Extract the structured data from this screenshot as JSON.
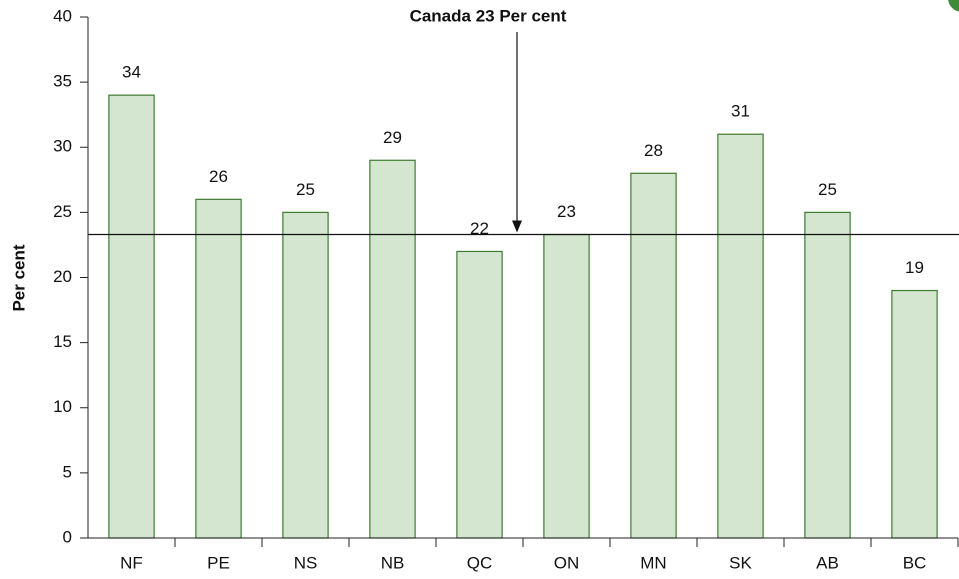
{
  "chart_data": {
    "type": "bar",
    "categories": [
      "NF",
      "PE",
      "NS",
      "NB",
      "QC",
      "ON",
      "MN",
      "SK",
      "AB",
      "BC"
    ],
    "values": [
      34,
      26,
      25,
      29,
      22,
      23.3,
      28,
      31,
      25,
      19
    ],
    "value_labels": [
      "34",
      "26",
      "25",
      "29",
      "22",
      "23",
      "28",
      "31",
      "25",
      "19"
    ],
    "color": "#d5e6d0",
    "edge_color": "#3d7a30",
    "ylabel": "Per cent",
    "ylim": [
      0,
      40
    ],
    "yticks": [
      0,
      5,
      10,
      15,
      20,
      25,
      30,
      35,
      40
    ],
    "reference_line": 23.3,
    "annotation": "Canada 23 Per cent",
    "grid": false
  }
}
